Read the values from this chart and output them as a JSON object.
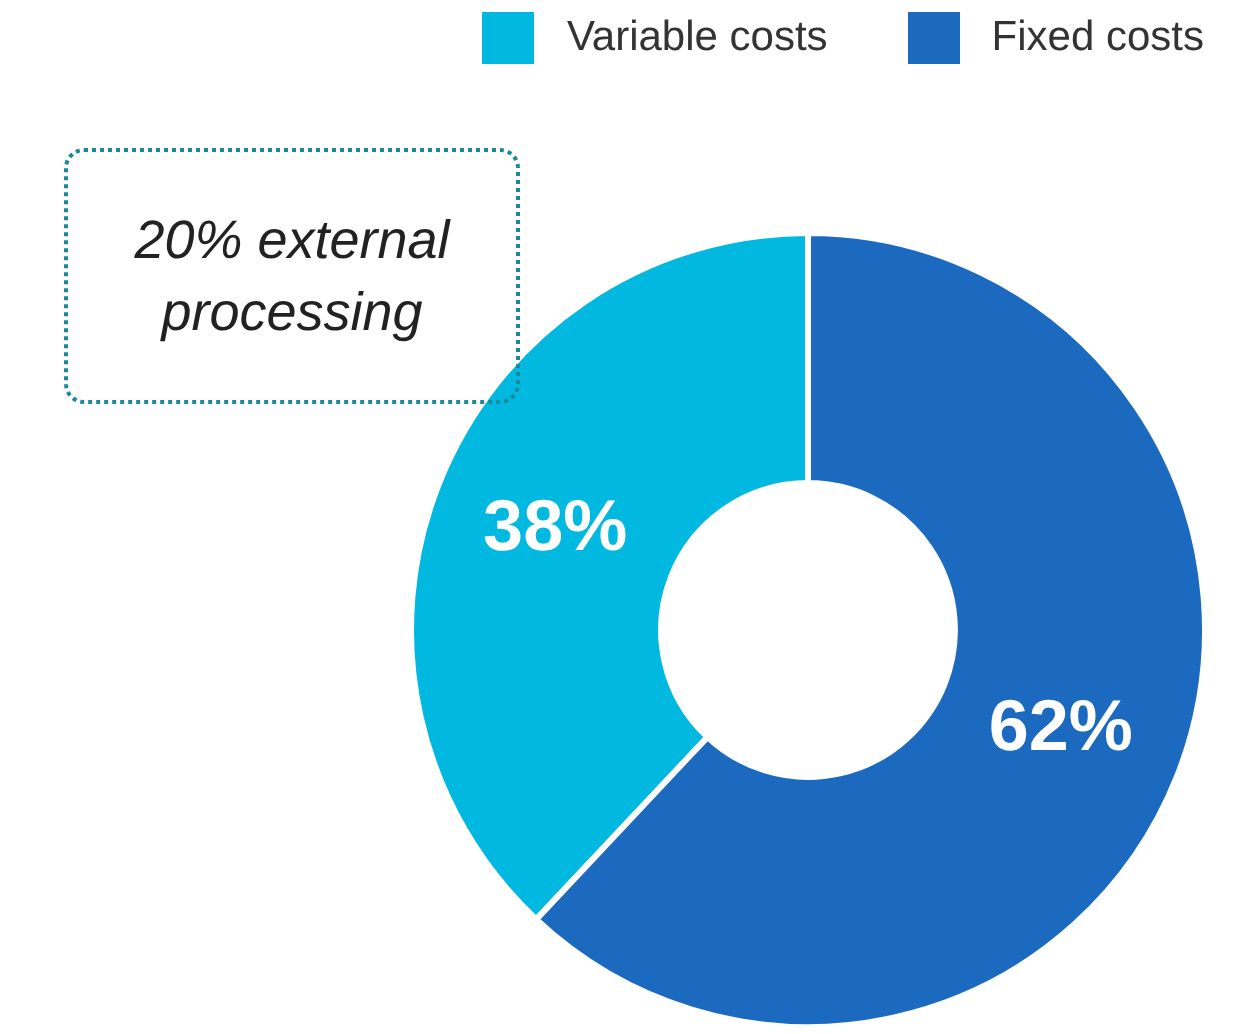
{
  "chart_data": {
    "type": "donut",
    "categories": [
      "Variable costs",
      "Fixed costs"
    ],
    "values": [
      38,
      62
    ],
    "colors": [
      "#00b8e0",
      "#1b6ac0"
    ],
    "value_labels": [
      "38%",
      "62%"
    ],
    "legend": "top right",
    "annotations": [
      "20% external processing"
    ]
  }
}
